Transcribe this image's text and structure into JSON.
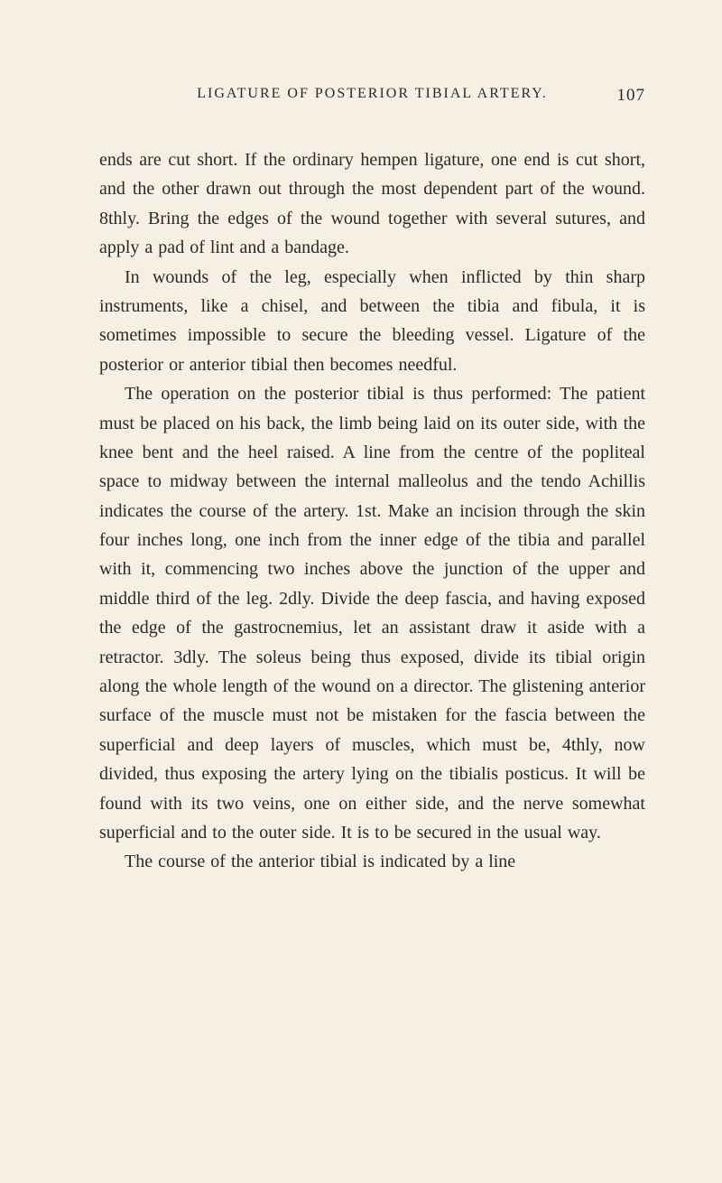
{
  "header": {
    "title": "LIGATURE OF POSTERIOR TIBIAL ARTERY.",
    "pageNumber": "107"
  },
  "paragraphs": {
    "p1": "ends are cut short. If the ordinary hempen ligature, one end is cut short, and the other drawn out through the most dependent part of the wound. 8thly. Bring the edges of the wound together with several sutures, and apply a pad of lint and a bandage.",
    "p2": "In wounds of the leg, especially when inflicted by thin sharp instruments, like a chisel, and between the tibia and fibula, it is sometimes impossible to secure the bleeding vessel. Ligature of the posterior or anterior tibial then becomes needful.",
    "p3": "The operation on the posterior tibial is thus performed: The patient must be placed on his back, the limb being laid on its outer side, with the knee bent and the heel raised. A line from the centre of the popliteal space to midway between the internal malleolus and the tendo Achillis indicates the course of the artery. 1st. Make an incision through the skin four inches long, one inch from the inner edge of the tibia and parallel with it, commencing two inches above the junction of the upper and middle third of the leg. 2dly. Divide the deep fascia, and having exposed the edge of the gastrocnemius, let an assistant draw it aside with a retractor. 3dly. The soleus being thus exposed, divide its tibial origin along the whole length of the wound on a director. The glistening anterior surface of the muscle must not be mistaken for the fascia between the superficial and deep layers of muscles, which must be, 4thly, now divided, thus exposing the artery lying on the tibialis posticus. It will be found with its two veins, one on either side, and the nerve somewhat superficial and to the outer side. It is to be secured in the usual way.",
    "p4": "The course of the anterior tibial is indicated by a line"
  },
  "styling": {
    "backgroundColor": "#f5f0e3",
    "textColor": "#2a2a2a",
    "bodyFontSize": 20,
    "headerFontSize": 16,
    "pageNumberFontSize": 19,
    "lineHeight": 1.62,
    "textIndent": 28
  }
}
